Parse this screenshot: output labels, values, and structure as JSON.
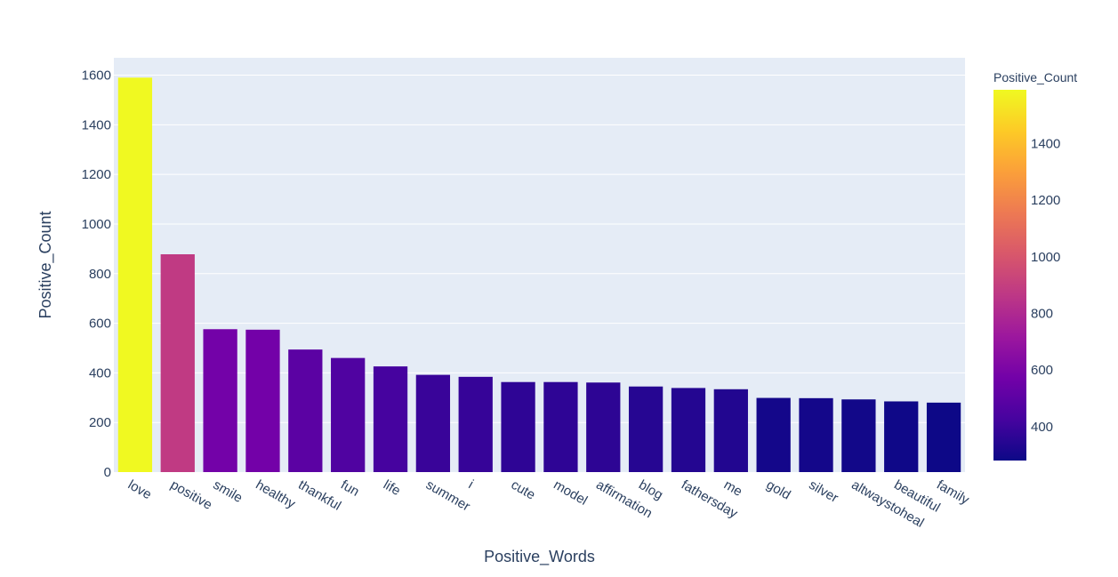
{
  "chart_data": {
    "type": "bar",
    "xlabel": "Positive_Words",
    "ylabel": "Positive_Count",
    "ylim": [
      0,
      1670
    ],
    "yticks": [
      0,
      200,
      400,
      600,
      800,
      1000,
      1200,
      1400,
      1600
    ],
    "grid": true,
    "categories": [
      "love",
      "positive",
      "smile",
      "healthy",
      "thankful",
      "fun",
      "life",
      "summer",
      "i",
      "cute",
      "model",
      "affirmation",
      "blog",
      "fathersday",
      "me",
      "gold",
      "silver",
      "altwaystoheal",
      "beautiful",
      "family"
    ],
    "values": [
      1590,
      878,
      576,
      574,
      494,
      460,
      426,
      392,
      384,
      363,
      363,
      361,
      345,
      339,
      334,
      299,
      298,
      293,
      285,
      280
    ],
    "colorbar": {
      "title": "Positive_Count",
      "placement": "right",
      "range": [
        280,
        1590
      ],
      "ticks": [
        400,
        600,
        800,
        1000,
        1200,
        1400
      ]
    },
    "colorscale": [
      "#0d0887",
      "#46039f",
      "#7201a8",
      "#9c179e",
      "#bd3786",
      "#d8576b",
      "#ed7953",
      "#fb9f3a",
      "#fdca26",
      "#f0f921"
    ],
    "plot_background": "#e5ecf6"
  }
}
